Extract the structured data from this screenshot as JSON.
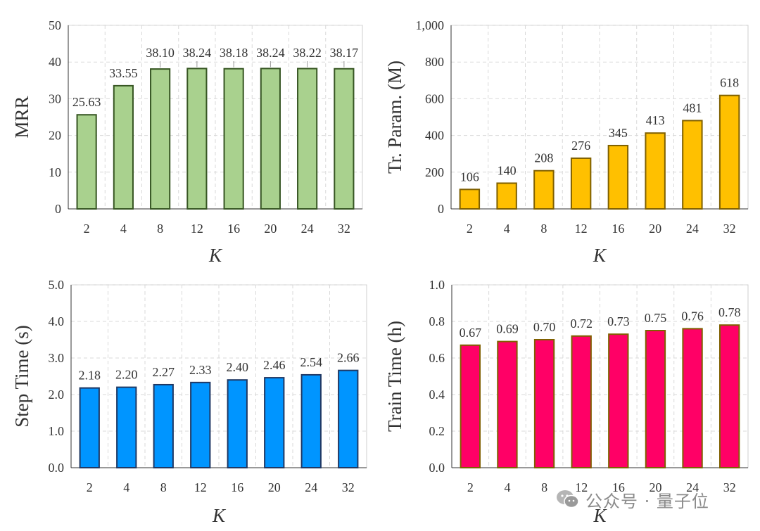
{
  "chart_data": [
    {
      "id": "mrr",
      "type": "bar",
      "categories": [
        "2",
        "4",
        "8",
        "12",
        "16",
        "20",
        "24",
        "32"
      ],
      "values": [
        25.63,
        33.55,
        38.1,
        38.24,
        38.18,
        38.24,
        38.22,
        38.17
      ],
      "labels": [
        "25.63",
        "33.55",
        "38.10",
        "38.24",
        "38.18",
        "38.24",
        "38.22",
        "38.17"
      ],
      "xlabel": "K",
      "ylabel": "MRR",
      "ylim": [
        0,
        50
      ],
      "yticks": [
        "0",
        "10",
        "20",
        "30",
        "40",
        "50"
      ],
      "grid": true,
      "color": "#a9d18e",
      "edge_color": "#375623"
    },
    {
      "id": "params",
      "type": "bar",
      "categories": [
        "2",
        "4",
        "8",
        "12",
        "16",
        "20",
        "24",
        "32"
      ],
      "values": [
        106,
        140,
        208,
        276,
        345,
        413,
        481,
        618
      ],
      "labels": [
        "106",
        "140",
        "208",
        "276",
        "345",
        "413",
        "481",
        "618"
      ],
      "xlabel": "K",
      "ylabel": "Tr. Param. (M)",
      "ylim": [
        0,
        1000
      ],
      "yticks": [
        "0",
        "200",
        "400",
        "600",
        "800",
        "1,000"
      ],
      "grid": true,
      "color": "#ffc000",
      "edge_color": "#7f6000"
    },
    {
      "id": "step",
      "type": "bar",
      "categories": [
        "2",
        "4",
        "8",
        "12",
        "16",
        "20",
        "24",
        "32"
      ],
      "values": [
        2.18,
        2.2,
        2.27,
        2.33,
        2.4,
        2.46,
        2.54,
        2.66
      ],
      "labels": [
        "2.18",
        "2.20",
        "2.27",
        "2.33",
        "2.40",
        "2.46",
        "2.54",
        "2.66"
      ],
      "xlabel": "K",
      "ylabel": "Step Time (s)",
      "ylim": [
        0,
        5
      ],
      "yticks": [
        "0.0",
        "1.0",
        "2.0",
        "3.0",
        "4.0",
        "5.0"
      ],
      "grid": true,
      "color": "#0095ff",
      "edge_color": "#1f3864"
    },
    {
      "id": "train",
      "type": "bar",
      "categories": [
        "2",
        "4",
        "8",
        "12",
        "16",
        "20",
        "24",
        "32"
      ],
      "values": [
        0.67,
        0.69,
        0.7,
        0.72,
        0.73,
        0.75,
        0.76,
        0.78
      ],
      "labels": [
        "0.67",
        "0.69",
        "0.70",
        "0.72",
        "0.73",
        "0.75",
        "0.76",
        "0.78"
      ],
      "xlabel": "K",
      "ylabel": "Train Time (h)",
      "ylim": [
        0,
        1
      ],
      "yticks": [
        "0.0",
        "0.2",
        "0.4",
        "0.6",
        "0.8",
        "1.0"
      ],
      "grid": true,
      "color": "#ff0066",
      "edge_color": "#7f6000"
    }
  ],
  "watermark": {
    "text": "公众号 · 量子位",
    "icon": "wechat-icon"
  }
}
